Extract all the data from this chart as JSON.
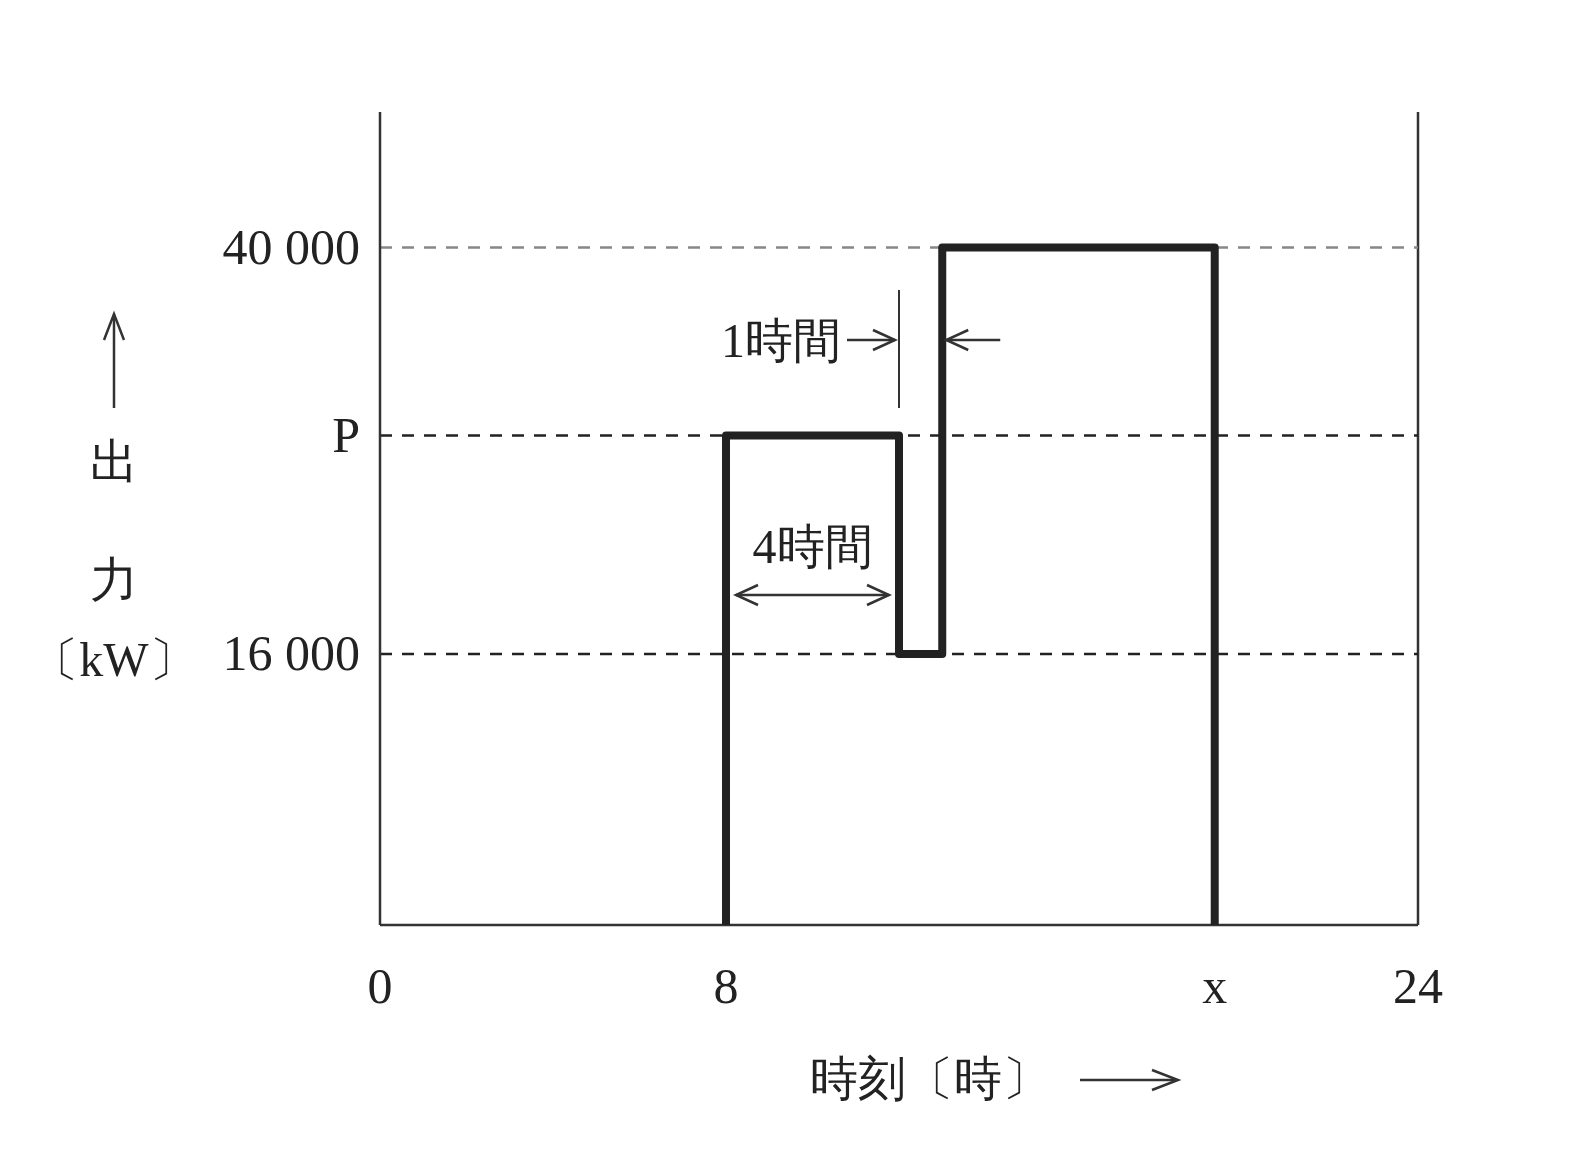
{
  "chart_data": {
    "type": "line",
    "xlabel": "時刻〔時〕",
    "ylabel": "出力〔kW〕",
    "x": [
      8,
      8,
      12,
      12,
      13,
      13,
      19.3,
      19.3
    ],
    "values": [
      0,
      28900,
      28900,
      16000,
      16000,
      40000,
      40000,
      0
    ],
    "color": "#222222",
    "xlim": [
      0,
      24
    ],
    "ylim": [
      0,
      48000
    ],
    "xticks": [
      0,
      8,
      {
        "value": 19.3,
        "label": "x"
      },
      24
    ],
    "yticks": [
      {
        "value": 16000,
        "label": "16 000"
      },
      {
        "value": 28900,
        "label": "P"
      },
      {
        "value": 40000,
        "label": "40 000"
      }
    ],
    "ref_lines": [
      {
        "axis": "x",
        "value": 24,
        "color": "#333333",
        "line_style": "solid"
      },
      {
        "axis": "y",
        "value": 16000,
        "color": "#222222",
        "line_style": "dashed"
      },
      {
        "axis": "y",
        "value": 28900,
        "color": "#222222",
        "line_style": "dashed"
      },
      {
        "axis": "y",
        "value": 40000,
        "color": "#888888",
        "line_style": "dashed"
      }
    ],
    "annotations": [
      "1時間",
      "4時間"
    ],
    "grid": false
  }
}
